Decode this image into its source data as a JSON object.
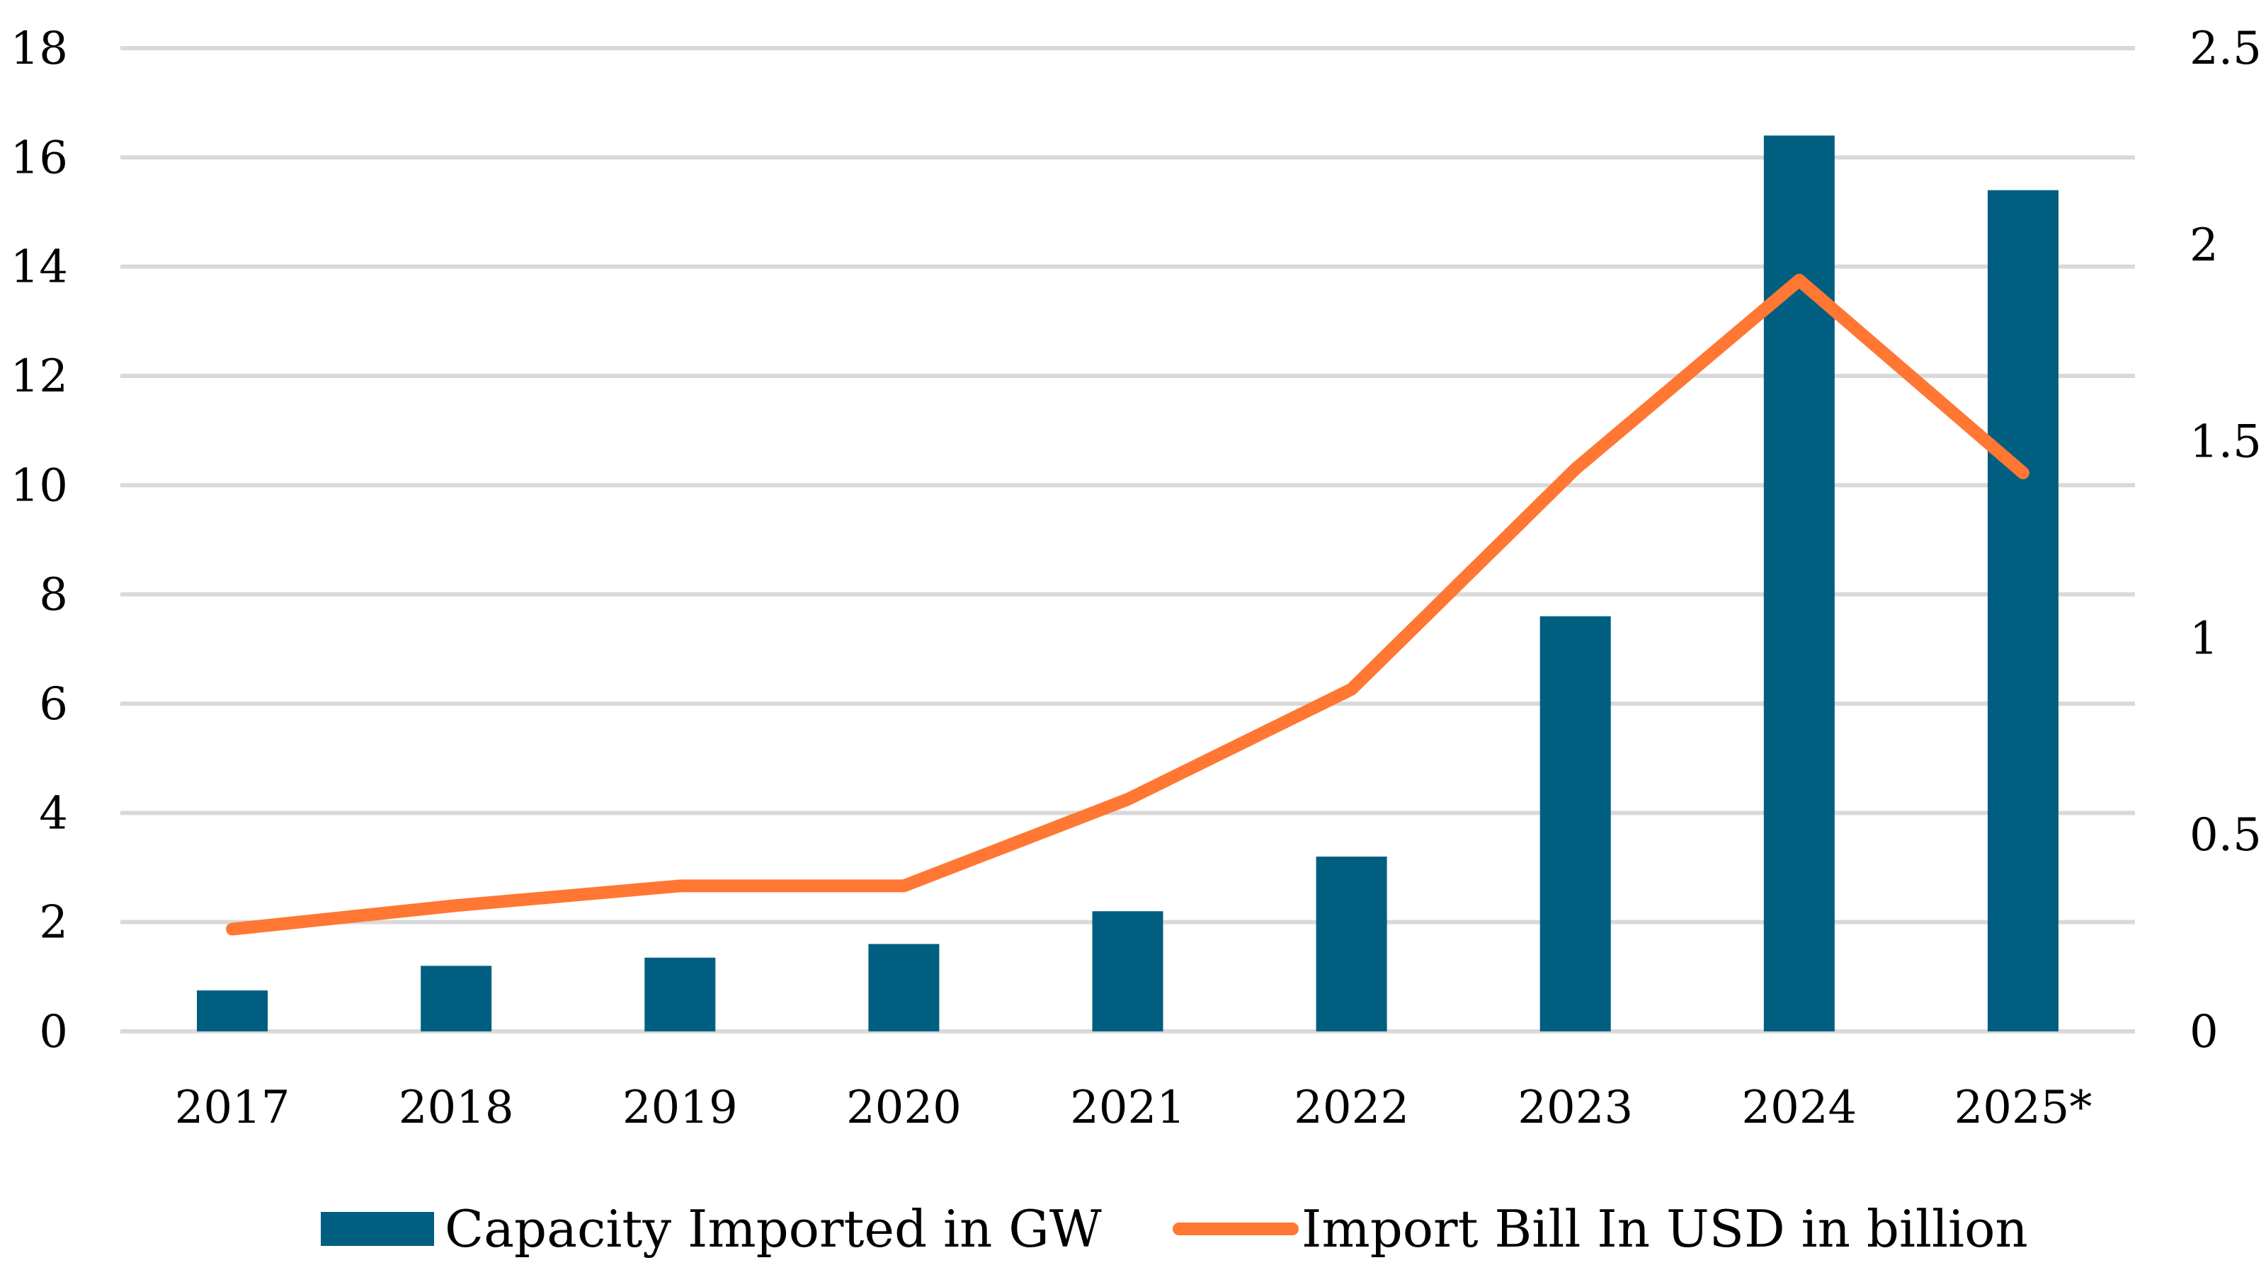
{
  "chart_data": {
    "type": "bar",
    "categories": [
      "2017",
      "2018",
      "2019",
      "2020",
      "2021",
      "2022",
      "2023",
      "2024",
      "2025*"
    ],
    "series": [
      {
        "name": "Capacity Imported in GW",
        "type": "bar",
        "axis": "left",
        "color": "#005F80",
        "values": [
          0.75,
          1.2,
          1.35,
          1.6,
          2.2,
          3.2,
          7.6,
          16.4,
          15.4
        ]
      },
      {
        "name": "Import Bill In USD in billion",
        "type": "line",
        "axis": "right",
        "color": "#FF7733",
        "values": [
          0.26,
          0.32,
          0.37,
          0.37,
          0.59,
          0.87,
          1.43,
          1.91,
          1.42
        ]
      }
    ],
    "y_left": {
      "range": [
        0,
        18
      ],
      "ticks": [
        "0",
        "2",
        "4",
        "6",
        "8",
        "10",
        "12",
        "14",
        "16",
        "18"
      ]
    },
    "y_right": {
      "range": [
        0,
        2.5
      ],
      "ticks": [
        "0",
        "0.5",
        "1",
        "1.5",
        "2",
        "2.5"
      ]
    },
    "grid": true,
    "legend_position": "bottom"
  }
}
